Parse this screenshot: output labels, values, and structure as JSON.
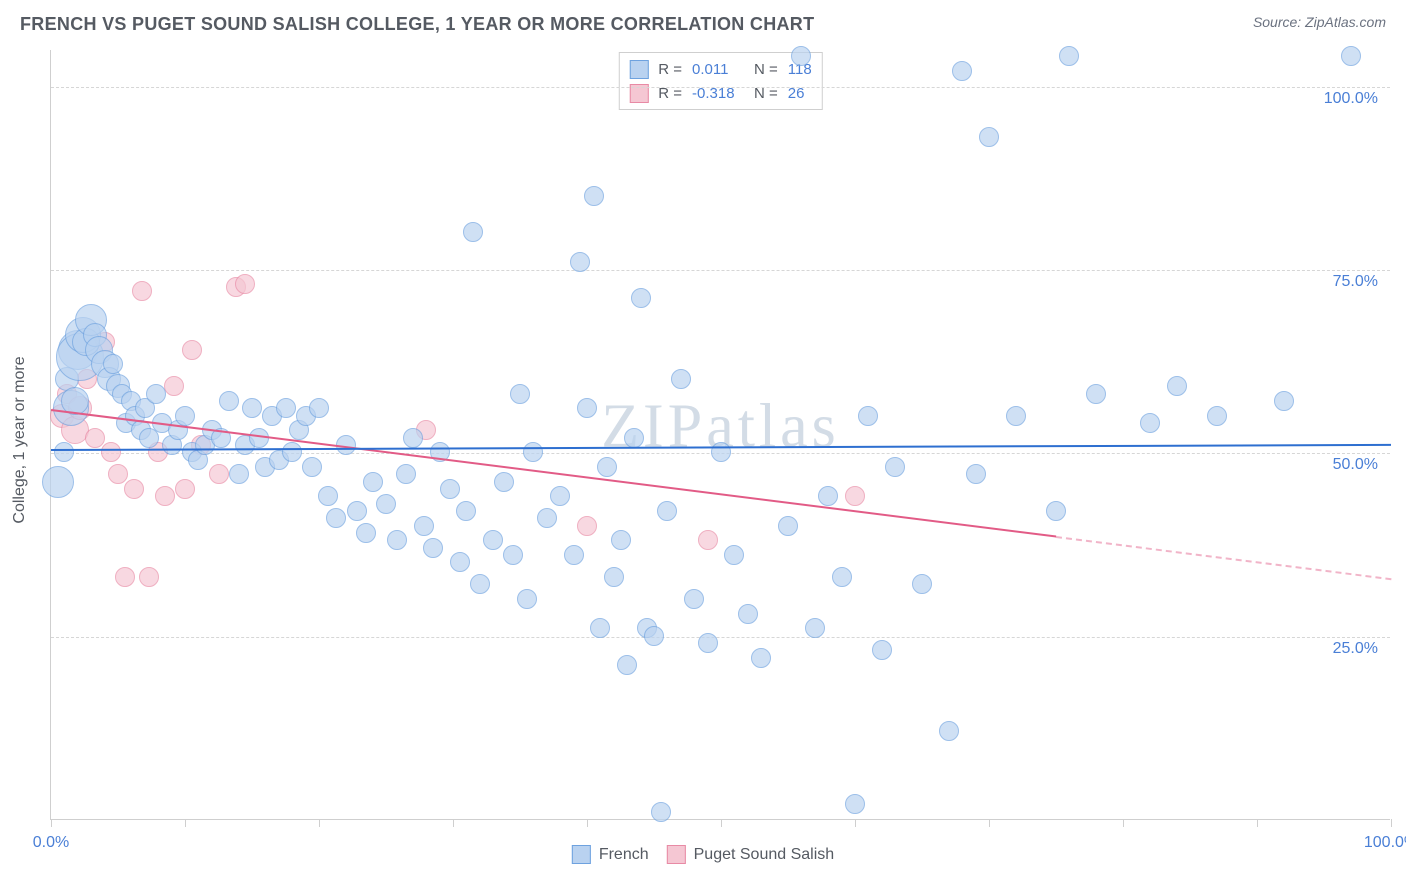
{
  "header": {
    "title": "FRENCH VS PUGET SOUND SALISH COLLEGE, 1 YEAR OR MORE CORRELATION CHART",
    "source": "Source: ZipAtlas.com"
  },
  "watermark": "ZIPatlas",
  "chart": {
    "type": "scatter",
    "ylabel": "College, 1 year or more",
    "xlim": [
      0,
      100
    ],
    "ylim": [
      0,
      105
    ],
    "y_gridlines": [
      25,
      50,
      75,
      100
    ],
    "ytick_labels": [
      "25.0%",
      "50.0%",
      "75.0%",
      "100.0%"
    ],
    "xtick_positions": [
      0,
      10,
      20,
      30,
      40,
      50,
      60,
      70,
      80,
      90,
      100
    ],
    "xtick_labels_shown": {
      "0": "0.0%",
      "100": "100.0%"
    },
    "axis_label_color": "#4a7fd6",
    "background_color": "#ffffff",
    "grid_color": "#d6d6d6"
  },
  "series": {
    "french": {
      "label": "French",
      "fill": "#b9d2f0",
      "stroke": "#6ea2df",
      "opacity": 0.68,
      "R": "0.011",
      "N": "118",
      "trend": {
        "color": "#2e6fd0",
        "y_start": 50.6,
        "y_end": 51.3,
        "solid_to_x": 100,
        "dash_to_x": 100
      }
    },
    "salish": {
      "label": "Puget Sound Salish",
      "fill": "#f5c7d3",
      "stroke": "#e88aa5",
      "opacity": 0.68,
      "R": "-0.318",
      "N": "26",
      "trend": {
        "color": "#e25b86",
        "y_start": 56.0,
        "y_end": 33.0,
        "solid_to_x": 75,
        "dash_to_x": 100
      }
    }
  },
  "stat_box": {
    "R_label": "R =",
    "N_label": "N =",
    "value_color": "#4a7fd6",
    "rows": [
      {
        "swatch_fill": "#b9d2f0",
        "swatch_stroke": "#6ea2df",
        "R": "0.011",
        "N": "118"
      },
      {
        "swatch_fill": "#f5c7d3",
        "swatch_stroke": "#e88aa5",
        "R": "-0.318",
        "N": "26"
      }
    ]
  },
  "points_french": [
    {
      "x": 0.5,
      "y": 46,
      "r": 16
    },
    {
      "x": 1,
      "y": 50,
      "r": 10
    },
    {
      "x": 1.2,
      "y": 60,
      "r": 12
    },
    {
      "x": 1.5,
      "y": 56,
      "r": 18
    },
    {
      "x": 1.8,
      "y": 57,
      "r": 14
    },
    {
      "x": 2,
      "y": 64,
      "r": 20
    },
    {
      "x": 2.2,
      "y": 63,
      "r": 24
    },
    {
      "x": 2.4,
      "y": 66,
      "r": 18
    },
    {
      "x": 2.6,
      "y": 65,
      "r": 14
    },
    {
      "x": 3,
      "y": 68,
      "r": 16
    },
    {
      "x": 3.3,
      "y": 66,
      "r": 12
    },
    {
      "x": 3.6,
      "y": 64,
      "r": 14
    },
    {
      "x": 4,
      "y": 62,
      "r": 14
    },
    {
      "x": 4.3,
      "y": 60,
      "r": 12
    },
    {
      "x": 4.6,
      "y": 62,
      "r": 10
    },
    {
      "x": 5,
      "y": 59,
      "r": 12
    },
    {
      "x": 5.3,
      "y": 58,
      "r": 10
    },
    {
      "x": 5.6,
      "y": 54,
      "r": 10
    },
    {
      "x": 6,
      "y": 57,
      "r": 10
    },
    {
      "x": 6.3,
      "y": 55,
      "r": 10
    },
    {
      "x": 6.7,
      "y": 53,
      "r": 10
    },
    {
      "x": 7,
      "y": 56,
      "r": 10
    },
    {
      "x": 7.3,
      "y": 52,
      "r": 10
    },
    {
      "x": 7.8,
      "y": 58,
      "r": 10
    },
    {
      "x": 8.3,
      "y": 54,
      "r": 10
    },
    {
      "x": 9,
      "y": 51,
      "r": 10
    },
    {
      "x": 9.5,
      "y": 53,
      "r": 10
    },
    {
      "x": 10,
      "y": 55,
      "r": 10
    },
    {
      "x": 10.5,
      "y": 50,
      "r": 10
    },
    {
      "x": 11,
      "y": 49,
      "r": 10
    },
    {
      "x": 11.5,
      "y": 51,
      "r": 10
    },
    {
      "x": 12,
      "y": 53,
      "r": 10
    },
    {
      "x": 12.7,
      "y": 52,
      "r": 10
    },
    {
      "x": 13.3,
      "y": 57,
      "r": 10
    },
    {
      "x": 14,
      "y": 47,
      "r": 10
    },
    {
      "x": 14.5,
      "y": 51,
      "r": 10
    },
    {
      "x": 15,
      "y": 56,
      "r": 10
    },
    {
      "x": 15.5,
      "y": 52,
      "r": 10
    },
    {
      "x": 16,
      "y": 48,
      "r": 10
    },
    {
      "x": 16.5,
      "y": 55,
      "r": 10
    },
    {
      "x": 17,
      "y": 49,
      "r": 10
    },
    {
      "x": 17.5,
      "y": 56,
      "r": 10
    },
    {
      "x": 18,
      "y": 50,
      "r": 10
    },
    {
      "x": 18.5,
      "y": 53,
      "r": 10
    },
    {
      "x": 19,
      "y": 55,
      "r": 10
    },
    {
      "x": 19.5,
      "y": 48,
      "r": 10
    },
    {
      "x": 20,
      "y": 56,
      "r": 10
    },
    {
      "x": 20.7,
      "y": 44,
      "r": 10
    },
    {
      "x": 21.3,
      "y": 41,
      "r": 10
    },
    {
      "x": 22,
      "y": 51,
      "r": 10
    },
    {
      "x": 22.8,
      "y": 42,
      "r": 10
    },
    {
      "x": 23.5,
      "y": 39,
      "r": 10
    },
    {
      "x": 24,
      "y": 46,
      "r": 10
    },
    {
      "x": 25,
      "y": 43,
      "r": 10
    },
    {
      "x": 25.8,
      "y": 38,
      "r": 10
    },
    {
      "x": 26.5,
      "y": 47,
      "r": 10
    },
    {
      "x": 27,
      "y": 52,
      "r": 10
    },
    {
      "x": 27.8,
      "y": 40,
      "r": 10
    },
    {
      "x": 28.5,
      "y": 37,
      "r": 10
    },
    {
      "x": 29,
      "y": 50,
      "r": 10
    },
    {
      "x": 29.8,
      "y": 45,
      "r": 10
    },
    {
      "x": 30.5,
      "y": 35,
      "r": 10
    },
    {
      "x": 31,
      "y": 42,
      "r": 10
    },
    {
      "x": 31.5,
      "y": 80,
      "r": 10
    },
    {
      "x": 32,
      "y": 32,
      "r": 10
    },
    {
      "x": 33,
      "y": 38,
      "r": 10
    },
    {
      "x": 33.8,
      "y": 46,
      "r": 10
    },
    {
      "x": 34.5,
      "y": 36,
      "r": 10
    },
    {
      "x": 35,
      "y": 58,
      "r": 10
    },
    {
      "x": 35.5,
      "y": 30,
      "r": 10
    },
    {
      "x": 36,
      "y": 50,
      "r": 10
    },
    {
      "x": 37,
      "y": 41,
      "r": 10
    },
    {
      "x": 38,
      "y": 44,
      "r": 10
    },
    {
      "x": 39,
      "y": 36,
      "r": 10
    },
    {
      "x": 39.5,
      "y": 76,
      "r": 10
    },
    {
      "x": 40,
      "y": 56,
      "r": 10
    },
    {
      "x": 40.5,
      "y": 85,
      "r": 10
    },
    {
      "x": 41,
      "y": 26,
      "r": 10
    },
    {
      "x": 41.5,
      "y": 48,
      "r": 10
    },
    {
      "x": 42,
      "y": 33,
      "r": 10
    },
    {
      "x": 42.5,
      "y": 38,
      "r": 10
    },
    {
      "x": 43,
      "y": 21,
      "r": 10
    },
    {
      "x": 43.5,
      "y": 52,
      "r": 10
    },
    {
      "x": 44,
      "y": 71,
      "r": 10
    },
    {
      "x": 44.5,
      "y": 26,
      "r": 10
    },
    {
      "x": 45,
      "y": 25,
      "r": 10
    },
    {
      "x": 45.5,
      "y": 1,
      "r": 10
    },
    {
      "x": 46,
      "y": 42,
      "r": 10
    },
    {
      "x": 47,
      "y": 60,
      "r": 10
    },
    {
      "x": 48,
      "y": 30,
      "r": 10
    },
    {
      "x": 49,
      "y": 24,
      "r": 10
    },
    {
      "x": 50,
      "y": 50,
      "r": 10
    },
    {
      "x": 51,
      "y": 36,
      "r": 10
    },
    {
      "x": 52,
      "y": 28,
      "r": 10
    },
    {
      "x": 53,
      "y": 22,
      "r": 10
    },
    {
      "x": 55,
      "y": 40,
      "r": 10
    },
    {
      "x": 56,
      "y": 104,
      "r": 10
    },
    {
      "x": 57,
      "y": 26,
      "r": 10
    },
    {
      "x": 58,
      "y": 44,
      "r": 10
    },
    {
      "x": 59,
      "y": 33,
      "r": 10
    },
    {
      "x": 60,
      "y": 2,
      "r": 10
    },
    {
      "x": 61,
      "y": 55,
      "r": 10
    },
    {
      "x": 62,
      "y": 23,
      "r": 10
    },
    {
      "x": 63,
      "y": 48,
      "r": 10
    },
    {
      "x": 65,
      "y": 32,
      "r": 10
    },
    {
      "x": 67,
      "y": 12,
      "r": 10
    },
    {
      "x": 68,
      "y": 102,
      "r": 10
    },
    {
      "x": 69,
      "y": 47,
      "r": 10
    },
    {
      "x": 70,
      "y": 93,
      "r": 10
    },
    {
      "x": 72,
      "y": 55,
      "r": 10
    },
    {
      "x": 75,
      "y": 42,
      "r": 10
    },
    {
      "x": 76,
      "y": 104,
      "r": 10
    },
    {
      "x": 78,
      "y": 58,
      "r": 10
    },
    {
      "x": 82,
      "y": 54,
      "r": 10
    },
    {
      "x": 84,
      "y": 59,
      "r": 10
    },
    {
      "x": 87,
      "y": 55,
      "r": 10
    },
    {
      "x": 92,
      "y": 57,
      "r": 10
    },
    {
      "x": 97,
      "y": 104,
      "r": 10
    }
  ],
  "points_salish": [
    {
      "x": 0.8,
      "y": 55,
      "r": 12
    },
    {
      "x": 1.2,
      "y": 58,
      "r": 10
    },
    {
      "x": 1.8,
      "y": 53,
      "r": 14
    },
    {
      "x": 2.2,
      "y": 56,
      "r": 12
    },
    {
      "x": 2.7,
      "y": 60,
      "r": 10
    },
    {
      "x": 3.3,
      "y": 52,
      "r": 10
    },
    {
      "x": 4.0,
      "y": 65,
      "r": 10
    },
    {
      "x": 4.5,
      "y": 50,
      "r": 10
    },
    {
      "x": 5.0,
      "y": 47,
      "r": 10
    },
    {
      "x": 5.5,
      "y": 33,
      "r": 10
    },
    {
      "x": 6.2,
      "y": 45,
      "r": 10
    },
    {
      "x": 6.8,
      "y": 72,
      "r": 10
    },
    {
      "x": 7.3,
      "y": 33,
      "r": 10
    },
    {
      "x": 8.0,
      "y": 50,
      "r": 10
    },
    {
      "x": 8.5,
      "y": 44,
      "r": 10
    },
    {
      "x": 9.2,
      "y": 59,
      "r": 10
    },
    {
      "x": 10.0,
      "y": 45,
      "r": 10
    },
    {
      "x": 10.5,
      "y": 64,
      "r": 10
    },
    {
      "x": 11.2,
      "y": 51,
      "r": 10
    },
    {
      "x": 12.5,
      "y": 47,
      "r": 10
    },
    {
      "x": 13.8,
      "y": 72.5,
      "r": 10
    },
    {
      "x": 14.5,
      "y": 73,
      "r": 10
    },
    {
      "x": 28,
      "y": 53,
      "r": 10
    },
    {
      "x": 40,
      "y": 40,
      "r": 10
    },
    {
      "x": 49,
      "y": 38,
      "r": 10
    },
    {
      "x": 60,
      "y": 44,
      "r": 10
    }
  ]
}
